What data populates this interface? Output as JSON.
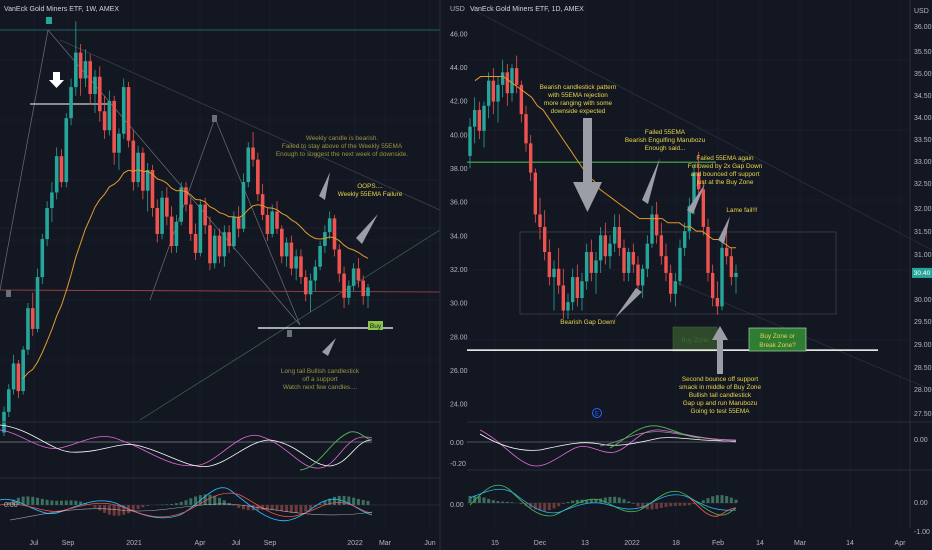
{
  "colors": {
    "bg": "#131722",
    "grid": "#1f2430",
    "text": "#b2b5be",
    "bull": "#26a69a",
    "bear": "#ef5350",
    "ema": "#e39a2d",
    "annot_yellow": "#e8d44d",
    "annot_olive": "#9a9440",
    "price_badge": "#26a69a",
    "buy_badge": "#8bc34a",
    "arrow": "#9b9ea6"
  },
  "chart_data": [
    {
      "type": "candlestick",
      "title": "VanEck Gold Miners ETF, 1W, AMEX",
      "x_ticks": [
        "Jul",
        "Sep",
        "2021",
        "Apr",
        "Jul",
        "Sep",
        "2022",
        "Mar",
        "Jun"
      ],
      "y_ticks": [],
      "ylim": [
        24,
        46
      ],
      "candles": [
        [
          22.0,
          23.5,
          21.8,
          23.2
        ],
        [
          23.2,
          24.8,
          22.9,
          24.5
        ],
        [
          24.5,
          26.5,
          24.2,
          26.0
        ],
        [
          26.0,
          26.2,
          24.0,
          24.4
        ],
        [
          24.4,
          27.0,
          24.2,
          26.8
        ],
        [
          26.8,
          29.5,
          26.5,
          29.2
        ],
        [
          29.2,
          30.1,
          27.6,
          28.0
        ],
        [
          28.0,
          31.5,
          27.8,
          31.0
        ],
        [
          31.0,
          33.5,
          30.6,
          33.2
        ],
        [
          33.2,
          35.4,
          32.8,
          35.0
        ],
        [
          35.0,
          36.5,
          34.2,
          35.9
        ],
        [
          35.9,
          38.5,
          35.5,
          38.0
        ],
        [
          38.0,
          38.4,
          36.2,
          36.5
        ],
        [
          36.5,
          40.5,
          36.2,
          40.2
        ],
        [
          40.2,
          42.5,
          39.8,
          42.0
        ],
        [
          42.0,
          45.8,
          41.5,
          44.0
        ],
        [
          44.0,
          44.5,
          41.5,
          42.5
        ],
        [
          42.5,
          44.2,
          42.0,
          43.5
        ],
        [
          43.5,
          43.9,
          41.0,
          41.6
        ],
        [
          41.6,
          43.0,
          40.5,
          42.6
        ],
        [
          42.6,
          43.2,
          40.0,
          40.6
        ],
        [
          40.6,
          41.5,
          39.0,
          39.5
        ],
        [
          39.5,
          41.8,
          39.2,
          41.2
        ],
        [
          41.2,
          41.5,
          37.5,
          38.2
        ],
        [
          38.2,
          39.6,
          37.2,
          39.3
        ],
        [
          39.3,
          42.5,
          39.0,
          42.0
        ],
        [
          42.0,
          42.3,
          38.5,
          38.9
        ],
        [
          38.9,
          39.5,
          36.0,
          36.5
        ],
        [
          36.5,
          38.6,
          36.2,
          38.2
        ],
        [
          38.2,
          38.5,
          35.5,
          36.0
        ],
        [
          36.0,
          37.6,
          34.8,
          37.2
        ],
        [
          37.2,
          37.5,
          34.5,
          35.0
        ],
        [
          35.0,
          35.5,
          33.0,
          33.5
        ],
        [
          33.5,
          36.0,
          33.2,
          35.6
        ],
        [
          35.6,
          36.2,
          34.0,
          34.5
        ],
        [
          34.5,
          35.1,
          32.4,
          32.8
        ],
        [
          32.8,
          34.6,
          32.4,
          34.2
        ],
        [
          34.2,
          36.5,
          34.0,
          36.2
        ],
        [
          36.2,
          36.5,
          34.8,
          35.2
        ],
        [
          35.2,
          35.6,
          33.1,
          33.5
        ],
        [
          33.5,
          34.1,
          32.0,
          32.4
        ],
        [
          32.4,
          35.5,
          32.2,
          35.2
        ],
        [
          35.2,
          35.6,
          33.5,
          34.0
        ],
        [
          34.0,
          34.5,
          31.4,
          31.8
        ],
        [
          31.8,
          33.8,
          31.5,
          33.4
        ],
        [
          33.4,
          33.8,
          31.8,
          32.2
        ],
        [
          32.2,
          34.0,
          31.6,
          33.6
        ],
        [
          33.6,
          34.0,
          32.4,
          32.8
        ],
        [
          32.8,
          34.8,
          32.6,
          34.5
        ],
        [
          34.5,
          35.1,
          33.3,
          33.8
        ],
        [
          33.8,
          37.0,
          33.6,
          36.5
        ],
        [
          36.5,
          38.8,
          36.2,
          38.5
        ],
        [
          38.5,
          39.4,
          37.4,
          37.8
        ],
        [
          37.8,
          38.2,
          35.4,
          35.8
        ],
        [
          35.8,
          36.4,
          34.3,
          34.6
        ],
        [
          34.6,
          35.0,
          33.1,
          33.5
        ],
        [
          33.5,
          35.2,
          33.3,
          34.8
        ],
        [
          34.8,
          35.4,
          33.5,
          33.8
        ],
        [
          33.8,
          34.0,
          31.8,
          32.2
        ],
        [
          32.2,
          33.3,
          31.6,
          33.0
        ],
        [
          33.0,
          33.4,
          31.1,
          31.5
        ],
        [
          31.5,
          32.6,
          30.8,
          32.2
        ],
        [
          32.2,
          32.6,
          30.6,
          31.0
        ],
        [
          31.0,
          31.4,
          29.6,
          30.0
        ],
        [
          30.0,
          31.2,
          29.0,
          30.8
        ],
        [
          30.8,
          32.0,
          30.2,
          31.6
        ],
        [
          31.6,
          33.1,
          31.4,
          32.8
        ],
        [
          32.8,
          34.0,
          32.4,
          33.6
        ],
        [
          33.6,
          34.8,
          33.2,
          34.4
        ],
        [
          34.4,
          34.6,
          32.2,
          32.6
        ],
        [
          32.6,
          32.9,
          30.7,
          31.2
        ],
        [
          31.2,
          31.6,
          29.2,
          29.8
        ],
        [
          29.8,
          30.8,
          29.4,
          30.5
        ],
        [
          30.5,
          31.8,
          30.2,
          31.5
        ],
        [
          31.5,
          32.1,
          30.4,
          30.8
        ],
        [
          30.8,
          31.1,
          29.4,
          29.9
        ],
        [
          29.9,
          30.6,
          29.2,
          30.4
        ]
      ]
    },
    {
      "type": "candlestick",
      "title": "VanEck Gold Miners ETF, 1D, AMEX",
      "axis_label": "USD",
      "x_ticks": [
        "15",
        "Dec",
        "13",
        "2022",
        "18",
        "Feb",
        "14",
        "Mar",
        "14",
        "Apr"
      ],
      "y_ticks": [
        "46.00",
        "44.00",
        "42.00",
        "40.00",
        "38.00",
        "36.00",
        "34.00",
        "32.00",
        "30.00",
        "28.00",
        "26.00",
        "24.00"
      ],
      "ylim": [
        23.3,
        46.7
      ],
      "right_axis_ticks": [
        "USD",
        "36.00",
        "35.50",
        "35.00",
        "34.50",
        "34.00",
        "33.50",
        "33.00",
        "32.50",
        "32.00",
        "31.50",
        "31.00",
        "30.50",
        "30.00",
        "29.50",
        "29.00",
        "28.50",
        "28.00",
        "27.50",
        "0.00",
        "0.00",
        "-1.00"
      ],
      "candles": [
        [
          33.2,
          34.1,
          32.9,
          33.9
        ],
        [
          33.9,
          34.6,
          33.5,
          34.3
        ],
        [
          34.3,
          34.5,
          33.6,
          33.8
        ],
        [
          33.8,
          34.5,
          33.4,
          34.4
        ],
        [
          34.4,
          35.2,
          34.1,
          35.0
        ],
        [
          35.0,
          35.3,
          34.2,
          34.5
        ],
        [
          34.5,
          35.1,
          34.0,
          34.9
        ],
        [
          34.9,
          35.5,
          34.6,
          35.2
        ],
        [
          35.2,
          35.4,
          34.4,
          34.7
        ],
        [
          34.7,
          35.4,
          34.5,
          35.3
        ],
        [
          35.3,
          35.6,
          34.7,
          34.9
        ],
        [
          34.9,
          35.0,
          34.0,
          34.2
        ],
        [
          34.2,
          34.4,
          33.3,
          33.5
        ],
        [
          33.5,
          33.7,
          32.6,
          32.8
        ],
        [
          32.8,
          32.9,
          31.6,
          31.8
        ],
        [
          31.8,
          32.2,
          31.2,
          31.5
        ],
        [
          31.5,
          31.9,
          30.7,
          30.9
        ],
        [
          30.9,
          31.2,
          30.1,
          30.3
        ],
        [
          30.3,
          30.7,
          29.5,
          30.5
        ],
        [
          30.5,
          31.0,
          29.9,
          30.1
        ],
        [
          30.1,
          30.5,
          29.3,
          29.5
        ],
        [
          29.5,
          29.9,
          29.3,
          29.7
        ],
        [
          29.7,
          30.5,
          29.5,
          30.3
        ],
        [
          30.3,
          30.6,
          29.6,
          29.8
        ],
        [
          29.8,
          30.4,
          29.5,
          30.2
        ],
        [
          30.2,
          31.1,
          30.0,
          30.9
        ],
        [
          30.9,
          31.2,
          30.2,
          30.4
        ],
        [
          30.4,
          30.9,
          29.9,
          30.7
        ],
        [
          30.7,
          31.5,
          30.4,
          31.3
        ],
        [
          31.3,
          31.6,
          30.6,
          30.8
        ],
        [
          30.8,
          31.3,
          30.5,
          31.1
        ],
        [
          31.1,
          31.8,
          30.9,
          31.5
        ],
        [
          31.5,
          31.8,
          30.8,
          31.0
        ],
        [
          31.0,
          31.2,
          30.2,
          30.4
        ],
        [
          30.4,
          31.0,
          30.2,
          30.9
        ],
        [
          30.9,
          31.1,
          30.4,
          30.6
        ],
        [
          30.6,
          30.8,
          29.9,
          30.1
        ],
        [
          30.1,
          30.6,
          29.8,
          30.5
        ],
        [
          30.5,
          31.3,
          30.3,
          31.1
        ],
        [
          31.1,
          32.0,
          31.0,
          31.8
        ],
        [
          31.8,
          32.1,
          31.1,
          31.3
        ],
        [
          31.3,
          31.6,
          30.6,
          30.8
        ],
        [
          30.8,
          31.1,
          30.2,
          30.4
        ],
        [
          30.4,
          30.6,
          29.7,
          29.9
        ],
        [
          29.9,
          30.4,
          29.6,
          30.2
        ],
        [
          30.2,
          31.2,
          30.1,
          31.0
        ],
        [
          31.0,
          31.6,
          30.8,
          31.4
        ],
        [
          31.4,
          32.2,
          31.2,
          32.0
        ],
        [
          32.0,
          33.0,
          31.8,
          32.8
        ],
        [
          32.8,
          33.3,
          32.2,
          32.4
        ],
        [
          32.4,
          32.6,
          31.3,
          31.5
        ],
        [
          31.5,
          31.7,
          30.2,
          30.4
        ],
        [
          30.4,
          30.6,
          29.6,
          29.8
        ],
        [
          29.8,
          30.2,
          29.4,
          29.6
        ],
        [
          29.6,
          31.3,
          29.5,
          31.0
        ],
        [
          31.0,
          31.6,
          30.6,
          30.8
        ],
        [
          30.8,
          31.0,
          30.1,
          30.3
        ],
        [
          30.3,
          30.6,
          29.9,
          30.4
        ]
      ],
      "ema_values": [
        35.0,
        35.1,
        35.1,
        35.1,
        35.1,
        35.1,
        35.0,
        34.9,
        34.8,
        34.7,
        34.6,
        34.4,
        34.3,
        34.1,
        33.9,
        33.7,
        33.5,
        33.3,
        33.1,
        32.9,
        32.7,
        32.6,
        32.4,
        32.3,
        32.2,
        32.1,
        32.0,
        31.9,
        31.8,
        31.7,
        31.7,
        31.7,
        31.7,
        31.7,
        31.6,
        31.6,
        31.6,
        31.5,
        31.5,
        31.4,
        31.4,
        31.3,
        31.2,
        31.2,
        31.1,
        31.0,
        31.0
      ],
      "price_label": "30.40",
      "last_price": 30.4,
      "hline_price": 33.05,
      "buy_zone_low": 28.6,
      "buy_zone_high": 29.1
    }
  ],
  "left_annotations": {
    "weekly_candle": [
      "Weekly candle is bearish.",
      "Failed to stay above of the Weekly 55EMA",
      "Enough to suggest the next week of downside."
    ],
    "oops": [
      "OOPS....",
      "Weekly 55EMA Failure"
    ],
    "buy_label": "Buy",
    "long_tail": [
      "Long tail Bullish candlestick",
      "off a support",
      "Watch next few candles...."
    ]
  },
  "right_annotations": {
    "bearish_pattern": [
      "Bearish candlestick pattern",
      "with 55EMA rejection",
      "more ranging with some",
      "downside expected"
    ],
    "failed_55ema": [
      "Failed 55EMA",
      "Bearish Engulfing Marubozu",
      "Enough said..."
    ],
    "failed_again": [
      "Failed 55EMA again",
      "Followed by 2x Gap Down",
      "and bounced off support",
      "just at the Buy Zone"
    ],
    "lame_fail": "Lame fail!!!",
    "gap_down": "Bearish Gap Down!",
    "buy_zone_small": "Buy Zone",
    "buy_zone_box": [
      "Buy Zone or",
      "Break Zone?"
    ],
    "second_bounce": [
      "Second bounce off support",
      "smack in middle of Buy Zone",
      "Bullish tail candlestick",
      "Gap up and run Marubozu",
      "Going to test 55EMA"
    ]
  },
  "indicator_labels": {
    "r_osc1_ticks": [
      "0.00",
      "-0.20"
    ],
    "r_osc2_ticks": [
      "0.00"
    ],
    "l_osc2_ticks": [
      "0.00"
    ],
    "marker_e": "E"
  }
}
